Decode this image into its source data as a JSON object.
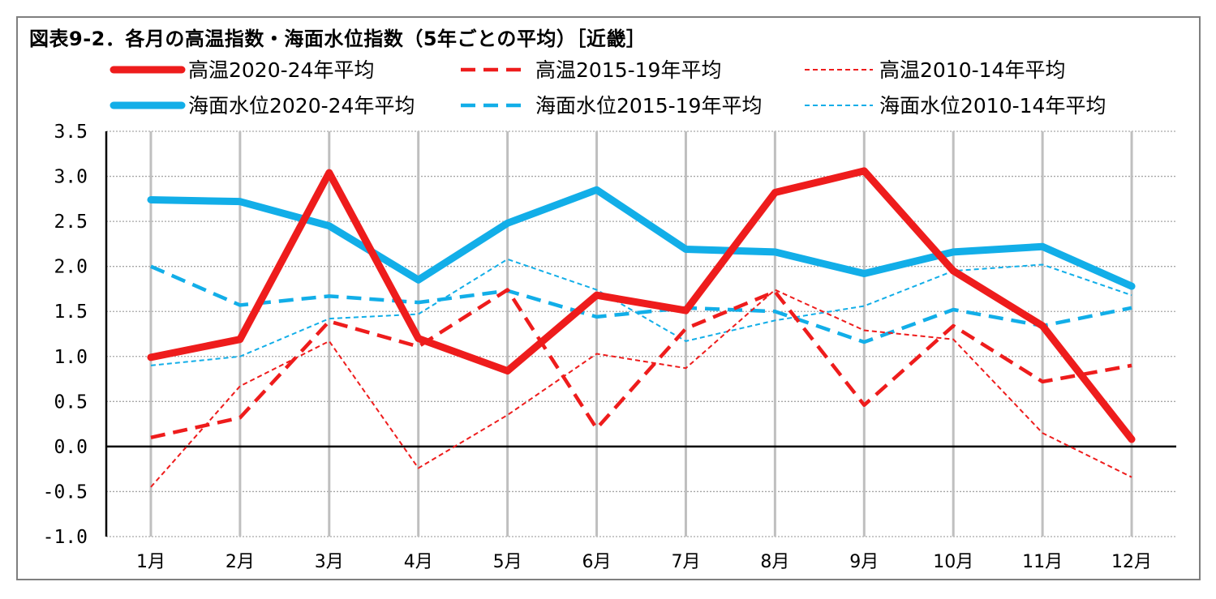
{
  "chart_data": {
    "type": "line",
    "title": "図表9-2．各月の高温指数・海面水位指数（5年ごとの平均）［近畿］",
    "categories": [
      "1月",
      "2月",
      "3月",
      "4月",
      "5月",
      "6月",
      "7月",
      "8月",
      "9月",
      "10月",
      "11月",
      "12月"
    ],
    "ylim": [
      -1.0,
      3.5
    ],
    "yticks": [
      "3.5",
      "3.0",
      "2.5",
      "2.0",
      "1.5",
      "1.0",
      "0.5",
      "0.0",
      "-0.5",
      "-1.0"
    ],
    "grid": true,
    "legend_position": "top",
    "series": [
      {
        "name": "高温2020-24年平均",
        "color": "#ee1c1c",
        "style": "solid-thick",
        "values": [
          0.99,
          1.19,
          3.04,
          1.2,
          0.84,
          1.68,
          1.51,
          2.82,
          3.06,
          1.95,
          1.34,
          0.08
        ]
      },
      {
        "name": "高温2015-19年平均",
        "color": "#ee1c1c",
        "style": "dash-medium",
        "values": [
          0.1,
          0.32,
          1.39,
          1.11,
          1.74,
          0.2,
          1.31,
          1.72,
          0.46,
          1.34,
          0.72,
          0.9
        ]
      },
      {
        "name": "高温2010-14年平均",
        "color": "#ee1c1c",
        "style": "dot-thin",
        "values": [
          -0.45,
          0.67,
          1.17,
          -0.24,
          0.35,
          1.03,
          0.87,
          1.74,
          1.29,
          1.19,
          0.15,
          -0.34
        ]
      },
      {
        "name": "海面水位2020-24年平均",
        "color": "#12aee8",
        "style": "solid-thick",
        "values": [
          2.74,
          2.72,
          2.45,
          1.85,
          2.48,
          2.85,
          2.19,
          2.16,
          1.92,
          2.16,
          2.22,
          1.78
        ]
      },
      {
        "name": "海面水位2015-19年平均",
        "color": "#12aee8",
        "style": "dash-medium",
        "values": [
          2.0,
          1.57,
          1.67,
          1.6,
          1.73,
          1.44,
          1.54,
          1.5,
          1.16,
          1.52,
          1.34,
          1.54
        ]
      },
      {
        "name": "海面水位2010-14年平均",
        "color": "#12aee8",
        "style": "dot-thin",
        "values": [
          0.9,
          1.0,
          1.42,
          1.47,
          2.08,
          1.74,
          1.17,
          1.4,
          1.56,
          1.95,
          2.02,
          1.68
        ]
      }
    ]
  }
}
